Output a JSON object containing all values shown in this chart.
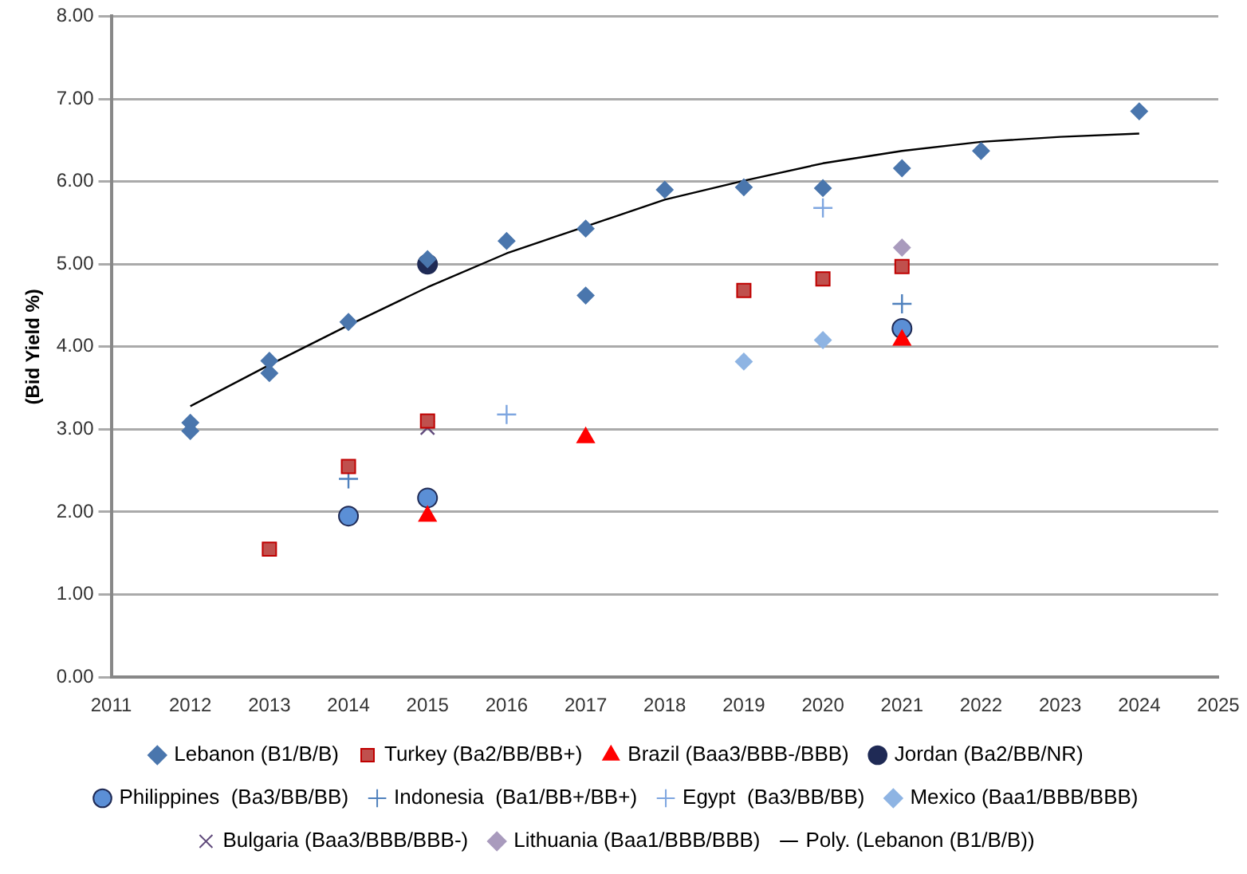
{
  "chart_data": {
    "type": "scatter",
    "ylabel": "(Bid Yield %)",
    "xlim": [
      2011,
      2025
    ],
    "xticks": [
      2011,
      2012,
      2013,
      2014,
      2015,
      2016,
      2017,
      2018,
      2019,
      2020,
      2021,
      2022,
      2023,
      2024,
      2025
    ],
    "ylim": [
      0,
      8
    ],
    "yticks": [
      {
        "value": 0,
        "label": "0.00"
      },
      {
        "value": 1,
        "label": "1.00"
      },
      {
        "value": 2,
        "label": "2.00"
      },
      {
        "value": 3,
        "label": "3.00"
      },
      {
        "value": 4,
        "label": "4.00"
      },
      {
        "value": 5,
        "label": "5.00"
      },
      {
        "value": 6,
        "label": "6.00"
      },
      {
        "value": 7,
        "label": "7.00"
      },
      {
        "value": 8,
        "label": "8.00"
      }
    ],
    "grid": "y",
    "legend": "bottom",
    "series": [
      {
        "name": "Lebanon (B1/B/B)",
        "color": "#4a76ad",
        "marker": "diamond",
        "x": [
          2012,
          2012,
          2013,
          2013,
          2014,
          2015,
          2016,
          2017,
          2017,
          2018,
          2019,
          2020,
          2021,
          2022,
          2024
        ],
        "values": [
          3.08,
          2.98,
          3.83,
          3.68,
          4.3,
          5.06,
          5.28,
          5.43,
          4.62,
          5.9,
          5.93,
          5.92,
          6.16,
          6.37,
          6.85
        ]
      },
      {
        "name": "Turkey (Ba2/BB/BB+)",
        "color": "#c0504d",
        "marker": "square",
        "x": [
          2013,
          2014,
          2015,
          2019,
          2020,
          2021
        ],
        "values": [
          1.55,
          2.55,
          3.1,
          4.68,
          4.82,
          4.97
        ]
      },
      {
        "name": "Brazil (Baa3/BBB-/BBB)",
        "color": "#ff0000",
        "marker": "triangle",
        "x": [
          2015,
          2017,
          2021
        ],
        "values": [
          1.95,
          2.9,
          4.08
        ]
      },
      {
        "name": "Jordan (Ba2/BB/NR)",
        "color": "#1f2a55",
        "marker": "circle",
        "x": [
          2015
        ],
        "values": [
          5.0
        ]
      },
      {
        "name": "Philippines  (Ba3/BB/BB)",
        "color": "#5b8fd6",
        "marker": "circle",
        "x": [
          2014,
          2015,
          2021
        ],
        "values": [
          1.95,
          2.17,
          4.22
        ]
      },
      {
        "name": "Indonesia  (Ba1/BB+/BB+)",
        "color": "#4f81bd",
        "marker": "cross",
        "x": [
          2014,
          2021
        ],
        "values": [
          2.4,
          4.52
        ]
      },
      {
        "name": "Egypt  (Ba3/BB/BB)",
        "color": "#7ea6e0",
        "marker": "cross",
        "x": [
          2016,
          2020
        ],
        "values": [
          3.18,
          5.68
        ]
      },
      {
        "name": "Mexico (Baa1/BBB/BBB)",
        "color": "#8eb4e3",
        "marker": "diamond",
        "x": [
          2019,
          2020
        ],
        "values": [
          3.82,
          4.08
        ]
      },
      {
        "name": "Bulgaria (Baa3/BBB/BBB-)",
        "color": "#604a7b",
        "marker": "x",
        "x": [
          2015
        ],
        "values": [
          3.02
        ]
      },
      {
        "name": "Lithuania (Baa1/BBB/BBB)",
        "color": "#a99bbd",
        "marker": "diamond",
        "x": [
          2021
        ],
        "values": [
          5.2
        ]
      },
      {
        "name": "Poly. (Lebanon (B1/B/B))",
        "type": "line",
        "color": "#000000",
        "marker": "none",
        "x": [
          2012,
          2013,
          2014,
          2015,
          2016,
          2018,
          2019,
          2020,
          2021,
          2022,
          2023,
          2024
        ],
        "values": [
          3.28,
          3.78,
          4.26,
          4.72,
          5.13,
          5.78,
          6.01,
          6.22,
          6.37,
          6.48,
          6.54,
          6.58
        ]
      }
    ]
  }
}
